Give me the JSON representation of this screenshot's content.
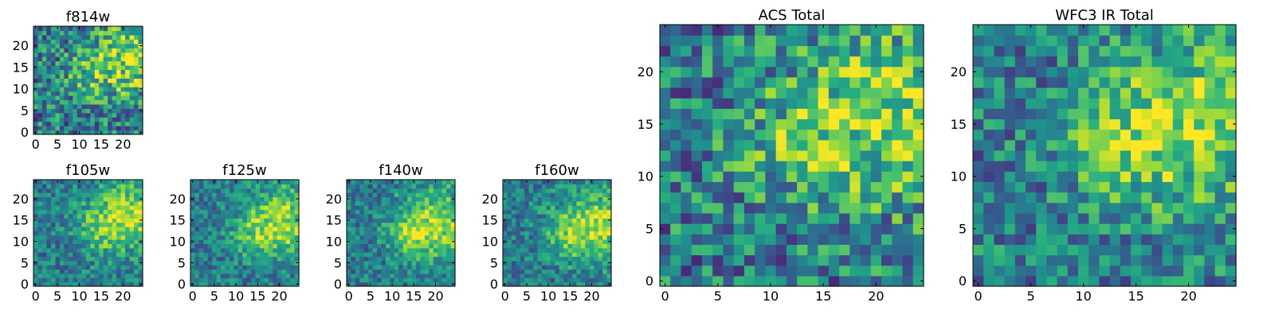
{
  "chart_data": [
    {
      "type": "heatmap",
      "title": "f814w",
      "xlim": [
        0,
        25
      ],
      "ylim": [
        0,
        25
      ],
      "grid_size": 25,
      "xticks": [
        "0",
        "5",
        "10",
        "15",
        "20"
      ],
      "yticks": [
        "0",
        "5",
        "10",
        "15",
        "20"
      ],
      "colormap": "viridis",
      "bright_region": [
        {
          "x": 22,
          "y": 17
        },
        {
          "x": 12,
          "y": 13
        }
      ],
      "noise": 0.45,
      "grid": false
    },
    {
      "type": "heatmap",
      "title": "f105w",
      "xlim": [
        0,
        25
      ],
      "ylim": [
        0,
        25
      ],
      "grid_size": 25,
      "xticks": [
        "0",
        "5",
        "10",
        "15",
        "20"
      ],
      "yticks": [
        "0",
        "5",
        "10",
        "15",
        "20"
      ],
      "colormap": "viridis",
      "bright_region": [
        {
          "x": 22,
          "y": 16
        },
        {
          "x": 14,
          "y": 13
        }
      ],
      "noise": 0.3,
      "grid": false
    },
    {
      "type": "heatmap",
      "title": "f125w",
      "xlim": [
        0,
        25
      ],
      "ylim": [
        0,
        25
      ],
      "grid_size": 25,
      "xticks": [
        "0",
        "5",
        "10",
        "15",
        "20"
      ],
      "yticks": [
        "0",
        "5",
        "10",
        "15",
        "20"
      ],
      "colormap": "viridis",
      "bright_region": [
        {
          "x": 22,
          "y": 15
        },
        {
          "x": 14,
          "y": 12
        }
      ],
      "noise": 0.3,
      "grid": false
    },
    {
      "type": "heatmap",
      "title": "f140w",
      "xlim": [
        0,
        25
      ],
      "ylim": [
        0,
        25
      ],
      "grid_size": 25,
      "xticks": [
        "0",
        "5",
        "10",
        "15",
        "20"
      ],
      "yticks": [
        "0",
        "5",
        "10",
        "15",
        "20"
      ],
      "colormap": "viridis",
      "bright_region": [
        {
          "x": 21,
          "y": 14
        },
        {
          "x": 14,
          "y": 12
        }
      ],
      "noise": 0.3,
      "grid": false
    },
    {
      "type": "heatmap",
      "title": "f160w",
      "xlim": [
        0,
        25
      ],
      "ylim": [
        0,
        25
      ],
      "grid_size": 25,
      "xticks": [
        "0",
        "5",
        "10",
        "15",
        "20"
      ],
      "yticks": [
        "0",
        "5",
        "10",
        "15",
        "20"
      ],
      "colormap": "viridis",
      "bright_region": [
        {
          "x": 22,
          "y": 14
        },
        {
          "x": 14,
          "y": 12
        }
      ],
      "noise": 0.3,
      "grid": false
    },
    {
      "type": "heatmap",
      "title": "ACS Total",
      "xlim": [
        0,
        25
      ],
      "ylim": [
        0,
        25
      ],
      "grid_size": 25,
      "xticks": [
        "0",
        "5",
        "10",
        "15",
        "20"
      ],
      "yticks": [
        "0",
        "5",
        "10",
        "15",
        "20"
      ],
      "colormap": "viridis",
      "bright_region": [
        {
          "x": 22,
          "y": 16
        },
        {
          "x": 12,
          "y": 13
        }
      ],
      "noise": 0.45,
      "grid": false
    },
    {
      "type": "heatmap",
      "title": "WFC3 IR Total",
      "xlim": [
        0,
        25
      ],
      "ylim": [
        0,
        25
      ],
      "grid_size": 25,
      "xticks": [
        "0",
        "5",
        "10",
        "15",
        "20"
      ],
      "yticks": [
        "0",
        "5",
        "10",
        "15",
        "20"
      ],
      "colormap": "viridis",
      "bright_region": [
        {
          "x": 21,
          "y": 15
        },
        {
          "x": 13,
          "y": 13
        }
      ],
      "noise": 0.38,
      "grid": false
    }
  ]
}
